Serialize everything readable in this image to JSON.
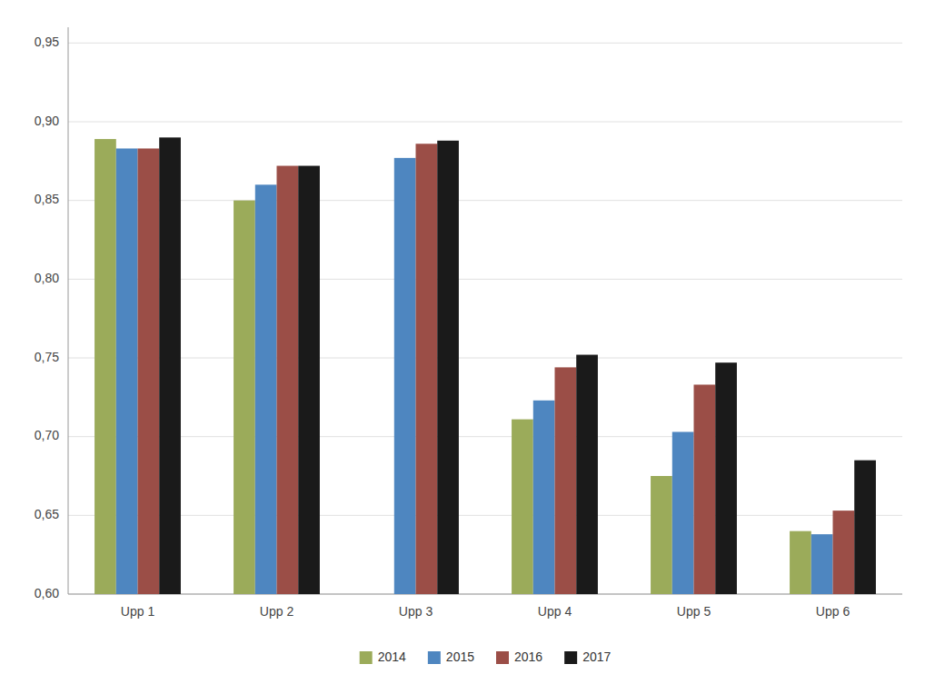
{
  "chart_data": {
    "type": "bar",
    "categories": [
      "Upp 1",
      "Upp 2",
      "Upp 3",
      "Upp 4",
      "Upp 5",
      "Upp 6"
    ],
    "series": [
      {
        "name": "2014",
        "color": "#9bab5a",
        "values": [
          0.889,
          0.85,
          null,
          0.711,
          0.675,
          0.64
        ]
      },
      {
        "name": "2015",
        "color": "#4e86c0",
        "values": [
          0.883,
          0.86,
          0.877,
          0.723,
          0.703,
          0.638
        ]
      },
      {
        "name": "2016",
        "color": "#9b4e47",
        "values": [
          0.883,
          0.872,
          0.886,
          0.744,
          0.733,
          0.653
        ]
      },
      {
        "name": "2017",
        "color": "#1a1a1a",
        "values": [
          0.89,
          0.872,
          0.888,
          0.752,
          0.747,
          0.685
        ]
      }
    ],
    "ylim": [
      0.6,
      0.96
    ],
    "yticks": [
      {
        "value": 0.6,
        "label": "0,60"
      },
      {
        "value": 0.65,
        "label": "0,65"
      },
      {
        "value": 0.7,
        "label": "0,70"
      },
      {
        "value": 0.75,
        "label": "0,75"
      },
      {
        "value": 0.8,
        "label": "0,80"
      },
      {
        "value": 0.85,
        "label": "0,85"
      },
      {
        "value": 0.9,
        "label": "0,90"
      },
      {
        "value": 0.95,
        "label": "0,95"
      }
    ],
    "grid": true,
    "legend": "bottom"
  }
}
